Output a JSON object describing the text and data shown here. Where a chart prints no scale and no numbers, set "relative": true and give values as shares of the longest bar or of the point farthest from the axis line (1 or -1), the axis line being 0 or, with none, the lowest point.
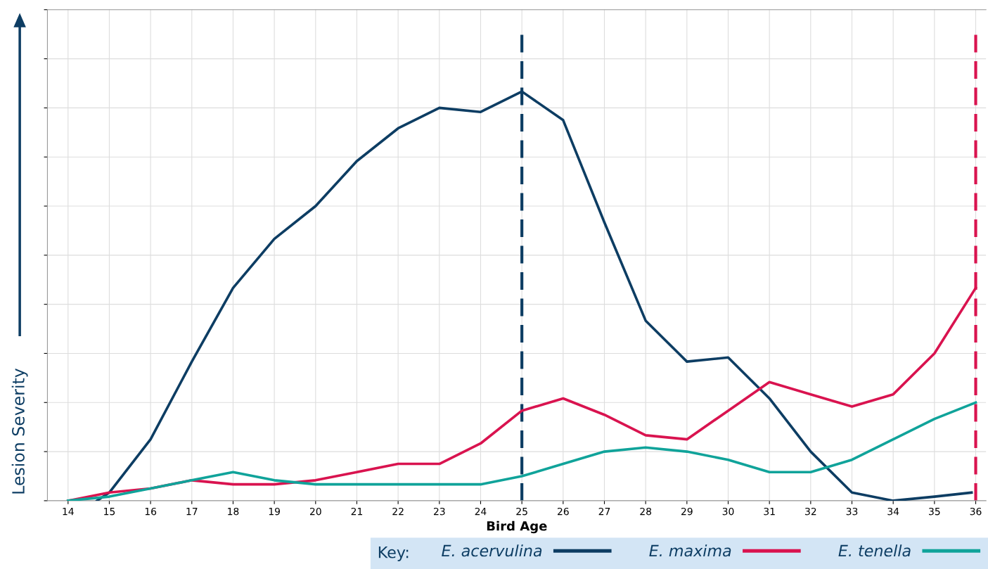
{
  "chart_data": {
    "type": "line",
    "relative": true,
    "xlabel": "Bird Age",
    "ylabel": "Lesion Severity",
    "legend_title": "Key:",
    "xlim": [
      13.5,
      36.25
    ],
    "xticks": [
      14,
      15,
      16,
      17,
      18,
      19,
      20,
      21,
      22,
      23,
      24,
      25,
      26,
      27,
      28,
      29,
      30,
      31,
      32,
      33,
      34,
      35,
      36
    ],
    "grid": true,
    "legend": "bottom right",
    "marker": "none",
    "line_style": "solid",
    "series": [
      {
        "name": "E. acervulina",
        "color": "#0d3d63",
        "x": [
          14.7,
          15,
          16,
          17,
          18,
          19,
          20,
          21,
          22,
          23,
          24,
          25,
          26,
          27,
          28,
          29,
          30,
          31,
          32,
          33,
          34,
          35,
          35.9
        ],
        "values": [
          0,
          0.02,
          0.15,
          0.34,
          0.52,
          0.64,
          0.72,
          0.83,
          0.91,
          0.96,
          0.95,
          1.0,
          0.93,
          0.68,
          0.44,
          0.34,
          0.35,
          0.25,
          0.12,
          0.02,
          0.0,
          0.01,
          0.02
        ]
      },
      {
        "name": "E. maxima",
        "color": "#d9134f",
        "x": [
          14,
          15,
          16,
          17,
          18,
          19,
          20,
          21,
          22,
          23,
          24,
          25,
          26,
          27,
          28,
          29,
          30,
          31,
          32,
          33,
          34,
          35,
          36
        ],
        "values": [
          0,
          0.02,
          0.03,
          0.05,
          0.04,
          0.04,
          0.05,
          0.07,
          0.09,
          0.09,
          0.14,
          0.22,
          0.25,
          0.21,
          0.16,
          0.15,
          0.22,
          0.29,
          0.26,
          0.23,
          0.26,
          0.36,
          0.52
        ]
      },
      {
        "name": "E. tenella",
        "color": "#10a39a",
        "x": [
          14,
          15,
          16,
          17,
          18,
          19,
          20,
          21,
          22,
          23,
          24,
          25,
          26,
          27,
          28,
          29,
          30,
          31,
          32,
          33,
          34,
          35,
          36
        ],
        "values": [
          0,
          0.01,
          0.03,
          0.05,
          0.07,
          0.05,
          0.04,
          0.04,
          0.04,
          0.04,
          0.04,
          0.06,
          0.09,
          0.12,
          0.13,
          0.12,
          0.1,
          0.07,
          0.07,
          0.1,
          0.15,
          0.2,
          0.24
        ]
      }
    ],
    "ref_lines": [
      {
        "axis": "x",
        "value": 25,
        "color": "#0d3d63",
        "line_style": "dashed"
      },
      {
        "axis": "x",
        "value": 36,
        "color": "#d9134f",
        "line_style": "dashed"
      }
    ]
  }
}
